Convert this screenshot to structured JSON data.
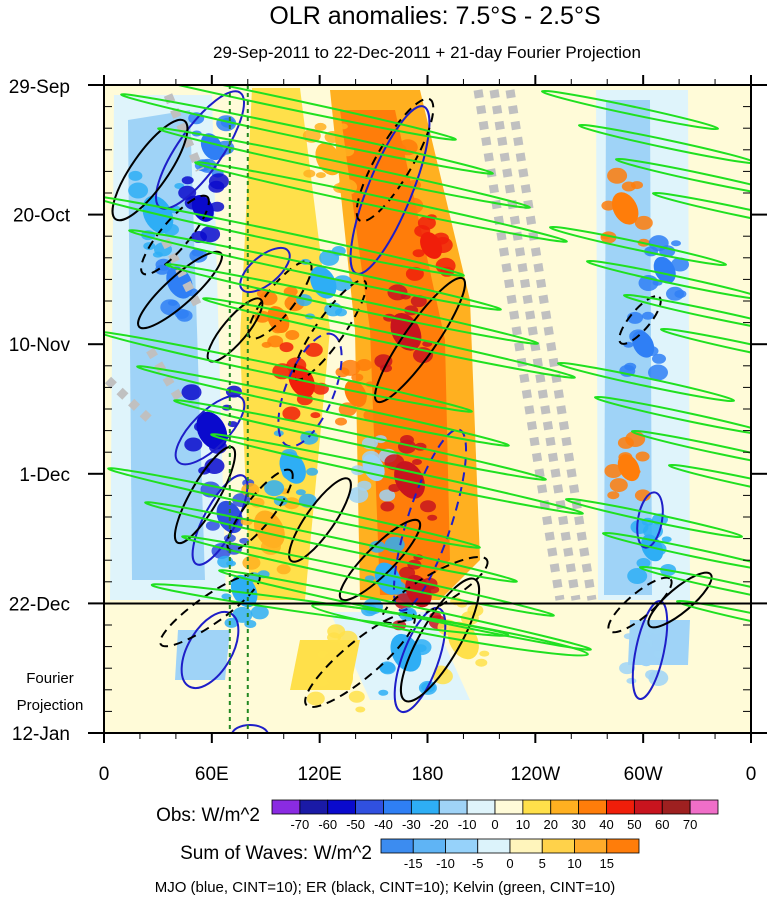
{
  "chart_data": {
    "type": "heatmap",
    "title": "OLR anomalies: 7.5°S - 2.5°S",
    "subtitle": "29-Sep-2011 to 22-Dec-2011 + 21-day Fourier Projection",
    "x_ticks": [
      "0",
      "60E",
      "120E",
      "180",
      "120W",
      "60W",
      "0"
    ],
    "x_tick_lons": [
      0,
      60,
      120,
      180,
      240,
      300,
      360
    ],
    "y_ticks": [
      "29-Sep",
      "20-Oct",
      "10-Nov",
      "1-Dec",
      "22-Dec",
      "12-Jan"
    ],
    "y_tick_days": [
      0,
      21,
      42,
      63,
      84,
      105
    ],
    "xlim": [
      0,
      360
    ],
    "ylim_days": [
      0,
      105
    ],
    "observation_end_day": 84,
    "projection_label_line1": "Fourier",
    "projection_label_line2": "Projection",
    "mjo_index_lons": [
      70,
      80
    ],
    "obs_colorbar": {
      "label": "Obs: W/m^2",
      "levels": [
        "-70",
        "-60",
        "-50",
        "-40",
        "-30",
        "-20",
        "-10",
        "0",
        "10",
        "20",
        "30",
        "40",
        "50",
        "60",
        "70"
      ],
      "colors": [
        "#8a2be2",
        "#1a1aa6",
        "#0a0acd",
        "#3050e0",
        "#2f7ff5",
        "#2eaef5",
        "#9fd3f7",
        "#dff4fb",
        "#fffbd8",
        "#ffe04a",
        "#ffb020",
        "#ff7d0a",
        "#f01e0a",
        "#c8141e",
        "#9e2020",
        "#f06ec8"
      ]
    },
    "waves_colorbar": {
      "label": "Sum of Waves: W/m^2",
      "levels": [
        "-15",
        "-10",
        "-5",
        "0",
        "5",
        "10",
        "15"
      ],
      "colors": [
        "#3c8cf0",
        "#5fb4f5",
        "#96d2fa",
        "#dcf3fb",
        "#fff5bc",
        "#ffd24a",
        "#ffab2a",
        "#ff7d0a"
      ]
    },
    "footnote": "MJO (blue, CINT=10); ER (black, CINT=10); Kelvin (green, CINT=10)",
    "contour_colors": {
      "mjo": "#1e1ec8",
      "er": "#000000",
      "kelvin": "#20e020",
      "mjo_lines": "#228822",
      "missing": "#c0c0c0"
    },
    "obs_bands": [
      {
        "lon": 30,
        "day": 21,
        "width": 14,
        "value": -25
      },
      {
        "lon": 42,
        "day": 32,
        "width": 12,
        "value": -40
      },
      {
        "lon": 60,
        "day": 10,
        "width": 10,
        "value": -35
      },
      {
        "lon": 55,
        "day": 20,
        "width": 10,
        "value": -55
      },
      {
        "lon": 60,
        "day": 56,
        "width": 14,
        "value": -60
      },
      {
        "lon": 70,
        "day": 70,
        "width": 12,
        "value": -45
      },
      {
        "lon": 78,
        "day": 82,
        "width": 12,
        "value": -30
      },
      {
        "lon": 97,
        "day": 38,
        "width": 10,
        "value": 35
      },
      {
        "lon": 92,
        "day": 72,
        "width": 14,
        "value": 20
      },
      {
        "lon": 110,
        "day": 48,
        "width": 12,
        "value": 40
      },
      {
        "lon": 105,
        "day": 62,
        "width": 12,
        "value": -25
      },
      {
        "lon": 122,
        "day": 32,
        "width": 12,
        "value": -30
      },
      {
        "lon": 125,
        "day": 12,
        "width": 12,
        "value": 20
      },
      {
        "lon": 140,
        "day": 50,
        "width": 10,
        "value": 30
      },
      {
        "lon": 150,
        "day": 62,
        "width": 10,
        "value": -20
      },
      {
        "lon": 158,
        "day": 80,
        "width": 12,
        "value": -30
      },
      {
        "lon": 162,
        "day": 14,
        "width": 12,
        "value": 35
      },
      {
        "lon": 168,
        "day": 40,
        "width": 14,
        "value": 55
      },
      {
        "lon": 170,
        "day": 64,
        "width": 14,
        "value": 50
      },
      {
        "lon": 175,
        "day": 82,
        "width": 12,
        "value": 50
      },
      {
        "lon": 168,
        "day": 92,
        "width": 14,
        "value": -30
      },
      {
        "lon": 182,
        "day": 26,
        "width": 10,
        "value": 40
      },
      {
        "lon": 130,
        "day": 95,
        "width": 14,
        "value": 12
      },
      {
        "lon": 200,
        "day": 90,
        "width": 14,
        "value": 10
      },
      {
        "lon": 290,
        "day": 20,
        "width": 12,
        "value": 30
      },
      {
        "lon": 300,
        "day": 42,
        "width": 10,
        "value": -40
      },
      {
        "lon": 292,
        "day": 62,
        "width": 10,
        "value": 35
      },
      {
        "lon": 305,
        "day": 75,
        "width": 10,
        "value": -30
      },
      {
        "lon": 312,
        "day": 30,
        "width": 10,
        "value": -35
      },
      {
        "lon": 300,
        "day": 92,
        "width": 10,
        "value": -12
      }
    ]
  }
}
